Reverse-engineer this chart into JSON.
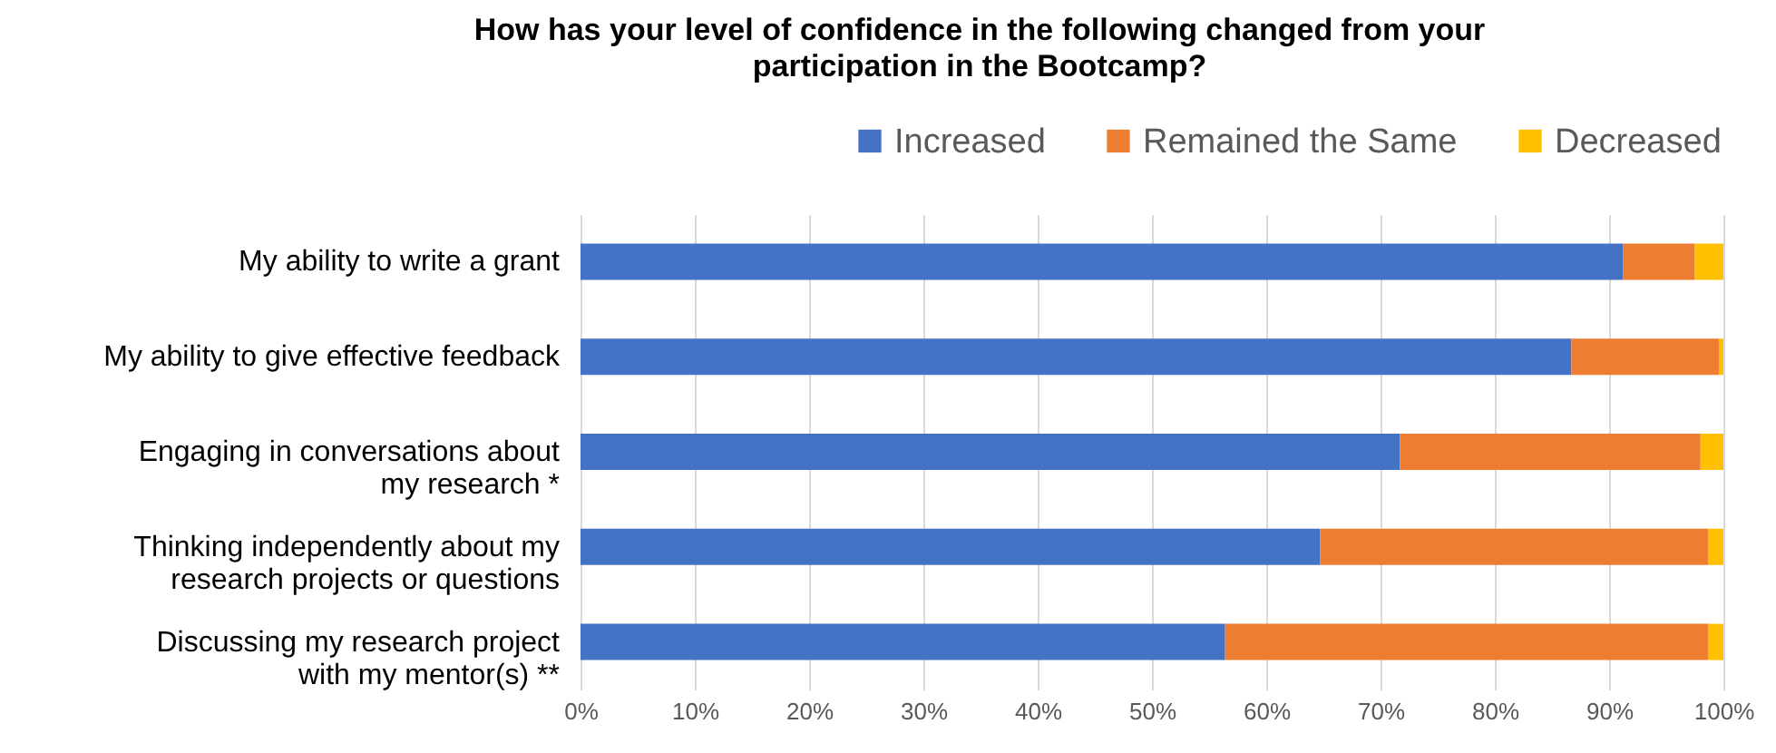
{
  "chart_data": {
    "type": "bar",
    "orientation": "horizontal",
    "stacked": true,
    "title": "How has your level of confidence in the following changed from your participation in the Bootcamp?",
    "categories": [
      "My ability to write a grant",
      "My ability to give effective feedback",
      "Engaging in conversations about my research *",
      "Thinking independently about my research projects or questions",
      "Discussing my research project with my mentor(s) **"
    ],
    "series": [
      {
        "name": "Increased",
        "color": "#4472c4",
        "values": [
          91.2,
          86.7,
          71.7,
          64.7,
          56.4
        ]
      },
      {
        "name": "Remained the Same",
        "color": "#ed7d31",
        "values": [
          6.3,
          12.9,
          26.3,
          34.0,
          42.3
        ]
      },
      {
        "name": "Decreased",
        "color": "#ffc000",
        "values": [
          2.5,
          0.4,
          2.0,
          1.3,
          1.3
        ]
      }
    ],
    "xlim": [
      0,
      100
    ],
    "xticks": [
      {
        "value": 0,
        "label": "0%"
      },
      {
        "value": 10,
        "label": "10%"
      },
      {
        "value": 20,
        "label": "20%"
      },
      {
        "value": 30,
        "label": "30%"
      },
      {
        "value": 40,
        "label": "40%"
      },
      {
        "value": 50,
        "label": "50%"
      },
      {
        "value": 60,
        "label": "60%"
      },
      {
        "value": 70,
        "label": "70%"
      },
      {
        "value": 80,
        "label": "80%"
      },
      {
        "value": 90,
        "label": "90%"
      },
      {
        "value": 100,
        "label": "100%"
      }
    ],
    "grid": "x",
    "legend": "top right"
  }
}
